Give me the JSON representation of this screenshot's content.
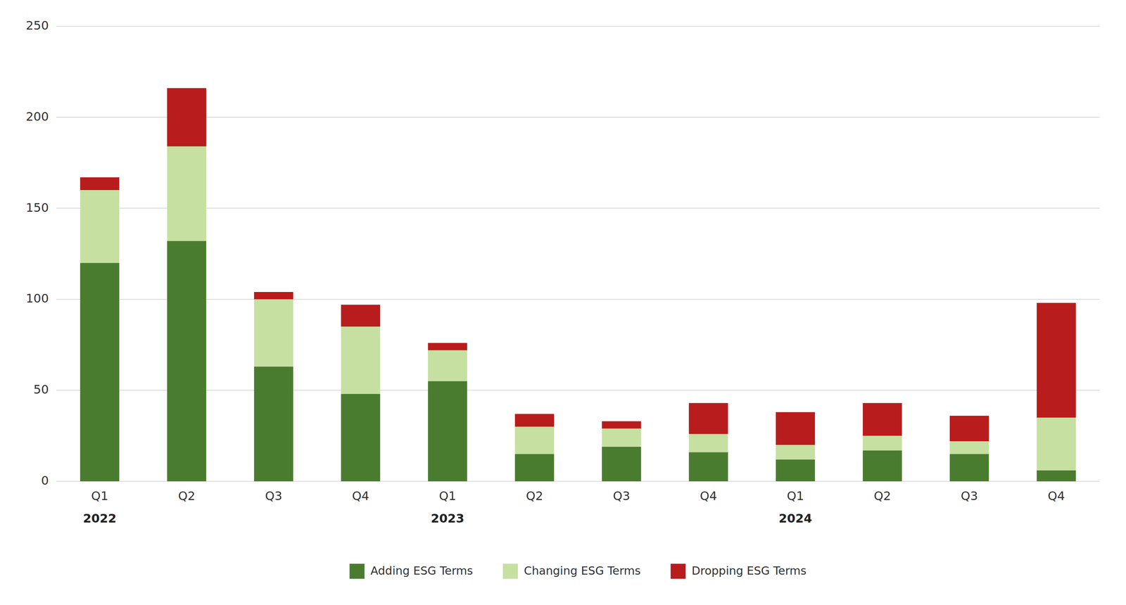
{
  "chart_data": {
    "type": "bar",
    "stacked": true,
    "categories": [
      "Q1",
      "Q2",
      "Q3",
      "Q4",
      "Q1",
      "Q2",
      "Q3",
      "Q4",
      "Q1",
      "Q2",
      "Q3",
      "Q4"
    ],
    "annotations": [
      {
        "text": "2022",
        "x": 0
      },
      {
        "text": "2023",
        "x": 4
      },
      {
        "text": "2024",
        "x": 8
      }
    ],
    "series": [
      {
        "name": "Adding ESG Terms",
        "color": "#4a7c2f",
        "values": [
          120,
          132,
          63,
          48,
          55,
          15,
          19,
          16,
          12,
          17,
          15,
          6
        ]
      },
      {
        "name": "Changing ESG Terms",
        "color": "#c5e0a0",
        "values": [
          40,
          52,
          37,
          37,
          17,
          15,
          10,
          10,
          8,
          8,
          7,
          29
        ]
      },
      {
        "name": "Dropping ESG Terms",
        "color": "#b81c1c",
        "values": [
          7,
          32,
          4,
          12,
          4,
          7,
          4,
          17,
          18,
          18,
          14,
          63
        ]
      }
    ],
    "ylim": [
      0,
      250
    ],
    "yticks": [
      0,
      50,
      100,
      150,
      200,
      250
    ],
    "grid": true,
    "legend": "bottom"
  }
}
